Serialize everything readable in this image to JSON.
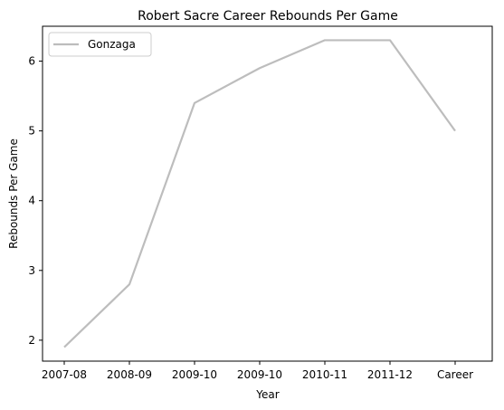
{
  "chart_data": {
    "type": "line",
    "title": "Robert Sacre Career Rebounds Per Game",
    "xlabel": "Year",
    "ylabel": "Rebounds Per Game",
    "categories": [
      "2007-08",
      "2008-09",
      "2009-10",
      "2009-10",
      "2010-11",
      "2011-12",
      "Career"
    ],
    "series": [
      {
        "name": "Gonzaga",
        "values": [
          1.9,
          2.8,
          5.4,
          5.9,
          6.3,
          6.3,
          5.0
        ],
        "color": "#bdbdbd"
      }
    ],
    "ylim": [
      1.7,
      6.5
    ],
    "yticks": [
      2,
      3,
      4,
      5,
      6
    ],
    "grid": false,
    "legend": "top-left"
  }
}
